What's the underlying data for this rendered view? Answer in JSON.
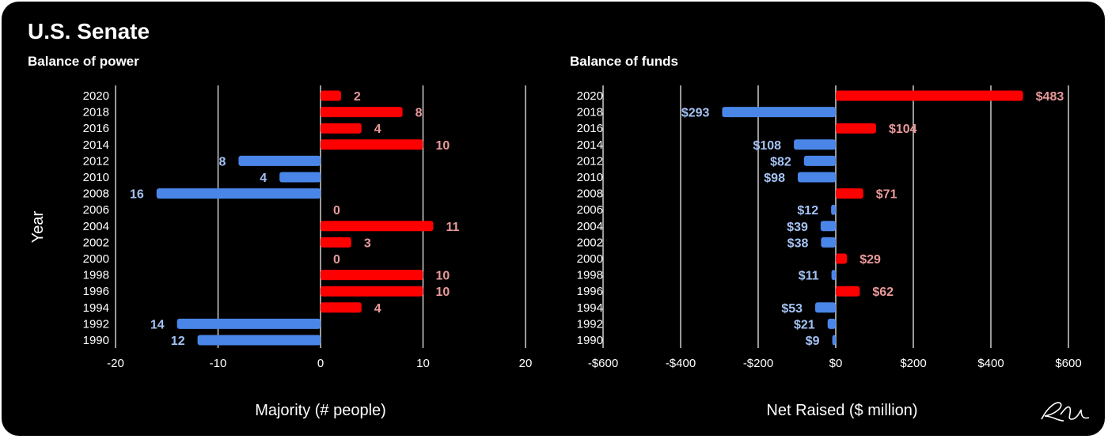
{
  "page_title": "U.S. Senate",
  "colors": {
    "background": "#000000",
    "positive": "#ff0000",
    "negative": "#4a86e8",
    "positive_label": "#ea9999",
    "negative_label": "#a4c2f4",
    "grid": "#ffffff",
    "text": "#ffffff"
  },
  "chart_data": [
    {
      "type": "bar",
      "orientation": "horizontal",
      "title": "Balance of power",
      "xlabel": "Majority (# people)",
      "ylabel": "Year",
      "xlim": [
        -20,
        20
      ],
      "xticks": [
        -20,
        -10,
        0,
        10,
        20
      ],
      "xtick_labels": [
        "-20",
        "-10",
        "0",
        "10",
        "20"
      ],
      "grid": true,
      "categories": [
        "2020",
        "2018",
        "2016",
        "2014",
        "2012",
        "2010",
        "2008",
        "2006",
        "2004",
        "2002",
        "2000",
        "1998",
        "1996",
        "1994",
        "1992",
        "1990"
      ],
      "values": [
        2,
        8,
        4,
        10,
        -8,
        -4,
        -16,
        0,
        11,
        3,
        0,
        10,
        10,
        4,
        -14,
        -12
      ],
      "labels": [
        "2",
        "8",
        "4",
        "10",
        "8",
        "4",
        "16",
        "0",
        "11",
        "3",
        "0",
        "10",
        "10",
        "4",
        "14",
        "12"
      ]
    },
    {
      "type": "bar",
      "orientation": "horizontal",
      "title": "Balance of funds",
      "xlabel": "Net Raised ($ million)",
      "ylabel": "",
      "xlim": [
        -600,
        600
      ],
      "xticks": [
        -600,
        -400,
        -200,
        0,
        200,
        400,
        600
      ],
      "xtick_labels": [
        "-$600",
        "-$400",
        "-$200",
        "$0",
        "$200",
        "$400",
        "$600"
      ],
      "grid": true,
      "categories": [
        "2020",
        "2018",
        "2016",
        "2014",
        "2012",
        "2010",
        "2008",
        "2006",
        "2004",
        "2002",
        "2000",
        "1998",
        "1996",
        "1994",
        "1992",
        "1990"
      ],
      "values": [
        483,
        -293,
        104,
        -108,
        -82,
        -98,
        71,
        -12,
        -39,
        -38,
        29,
        -11,
        62,
        -53,
        -21,
        -9
      ],
      "labels": [
        "$483",
        "$293",
        "$104",
        "$108",
        "$82",
        "$98",
        "$71",
        "$12",
        "$39",
        "$38",
        "$29",
        "$11",
        "$62",
        "$53",
        "$21",
        "$9"
      ]
    }
  ]
}
